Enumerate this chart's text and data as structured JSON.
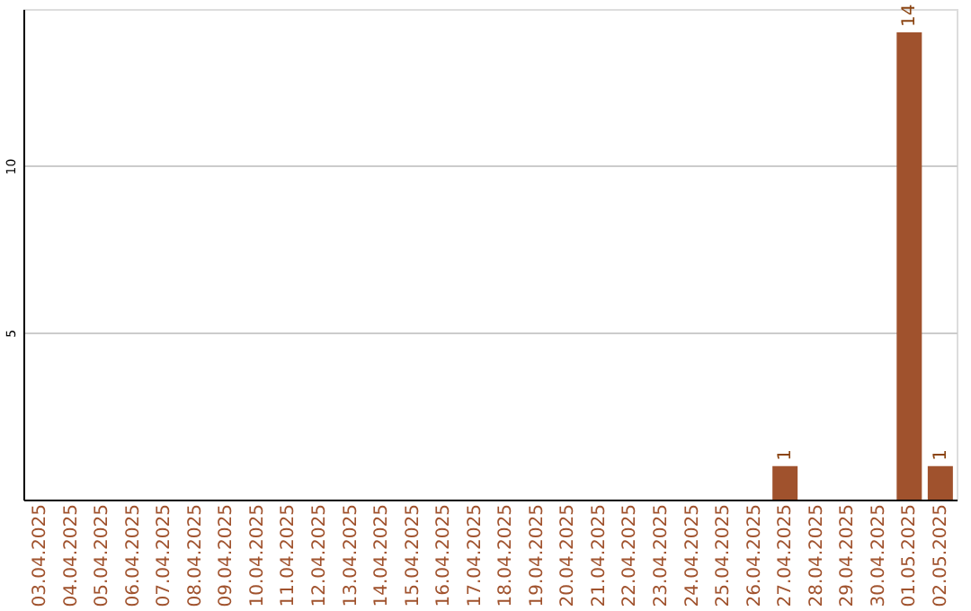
{
  "chart_data": {
    "type": "bar",
    "categories": [
      "03.04.2025",
      "04.04.2025",
      "05.04.2025",
      "06.04.2025",
      "07.04.2025",
      "08.04.2025",
      "09.04.2025",
      "10.04.2025",
      "11.04.2025",
      "12.04.2025",
      "13.04.2025",
      "14.04.2025",
      "15.04.2025",
      "16.04.2025",
      "17.04.2025",
      "18.04.2025",
      "19.04.2025",
      "20.04.2025",
      "21.04.2025",
      "22.04.2025",
      "23.04.2025",
      "24.04.2025",
      "25.04.2025",
      "26.04.2025",
      "27.04.2025",
      "28.04.2025",
      "29.04.2025",
      "30.04.2025",
      "01.05.2025",
      "02.05.2025"
    ],
    "values": [
      0,
      0,
      0,
      0,
      0,
      0,
      0,
      0,
      0,
      0,
      0,
      0,
      0,
      0,
      0,
      0,
      0,
      0,
      0,
      0,
      0,
      0,
      0,
      0,
      1,
      0,
      0,
      0,
      14,
      1
    ],
    "value_labels": [
      null,
      null,
      null,
      null,
      null,
      null,
      null,
      null,
      null,
      null,
      null,
      null,
      null,
      null,
      null,
      null,
      null,
      null,
      null,
      null,
      null,
      null,
      null,
      null,
      "1",
      null,
      null,
      null,
      "14",
      "1"
    ],
    "color": "#a0522d",
    "ylim": [
      0,
      14.7
    ],
    "yticks": [
      5,
      10
    ],
    "grid": "y"
  }
}
